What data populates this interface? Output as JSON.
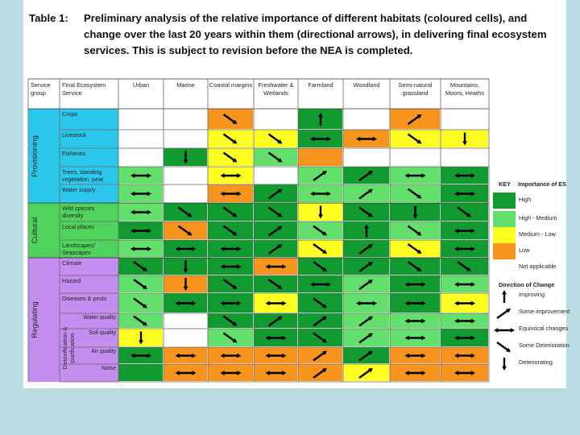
{
  "title": {
    "label": "Table 1:",
    "text": "Preliminary analysis of the relative importance of different habitats (coloured cells), and change over the last 20 years within them (directional arrows), in delivering final ecosystem services.   This is subject to revision before the NEA is completed."
  },
  "header": {
    "group": "Service group",
    "service": "Final Ecosystem Service",
    "habitats": [
      "Urban",
      "Marine",
      "Coastal margins",
      "Freshwater & Wetlands",
      "Farmland",
      "Woodland",
      "Semi-natural grassland",
      "Mountains, Moors, Heaths"
    ]
  },
  "groups": [
    {
      "name": "Provisioning"
    },
    {
      "name": "Cultural"
    },
    {
      "name": "Regulating"
    },
    {
      "name": "Detoxification & purification"
    }
  ],
  "colors": {
    "high": "#119a2f",
    "medium_high": "#63e06c",
    "medium_low": "#ffff22",
    "low": "#f7941e",
    "na": "#ffffff",
    "provisioning": "#2cc8ec",
    "cultural": "#4fd35c",
    "regulating": "#c48ef0"
  },
  "rows": [
    {
      "service": "Crops",
      "cells": [
        {
          "c": "na",
          "a": ""
        },
        {
          "c": "na",
          "a": ""
        },
        {
          "c": "low",
          "a": "down-right"
        },
        {
          "c": "na",
          "a": ""
        },
        {
          "c": "high",
          "a": "up"
        },
        {
          "c": "na",
          "a": ""
        },
        {
          "c": "low",
          "a": "up-right"
        },
        {
          "c": "na",
          "a": ""
        }
      ]
    },
    {
      "service": "Livestock",
      "cells": [
        {
          "c": "na",
          "a": ""
        },
        {
          "c": "na",
          "a": ""
        },
        {
          "c": "medium_low",
          "a": "down-right"
        },
        {
          "c": "medium_low",
          "a": "down-right"
        },
        {
          "c": "high",
          "a": "both"
        },
        {
          "c": "low",
          "a": "both"
        },
        {
          "c": "medium_low",
          "a": "down-right"
        },
        {
          "c": "medium_low",
          "a": "down"
        }
      ]
    },
    {
      "service": "Fisheries",
      "cells": [
        {
          "c": "na",
          "a": ""
        },
        {
          "c": "high",
          "a": "down"
        },
        {
          "c": "medium_low",
          "a": "down-right"
        },
        {
          "c": "medium_high",
          "a": "down-right"
        },
        {
          "c": "low",
          "a": ""
        },
        {
          "c": "na",
          "a": ""
        },
        {
          "c": "na",
          "a": ""
        },
        {
          "c": "na",
          "a": ""
        }
      ]
    },
    {
      "service": "Trees, standing vegetation, peat",
      "cells": [
        {
          "c": "medium_high",
          "a": "both"
        },
        {
          "c": "na",
          "a": ""
        },
        {
          "c": "medium_low",
          "a": "both"
        },
        {
          "c": "na",
          "a": ""
        },
        {
          "c": "medium_high",
          "a": "up-right"
        },
        {
          "c": "high",
          "a": "up-right"
        },
        {
          "c": "medium_high",
          "a": "both"
        },
        {
          "c": "high",
          "a": "both"
        }
      ]
    },
    {
      "service": "Water supply",
      "cells": [
        {
          "c": "medium_high",
          "a": "both"
        },
        {
          "c": "na",
          "a": ""
        },
        {
          "c": "low",
          "a": "both"
        },
        {
          "c": "high",
          "a": "up-right"
        },
        {
          "c": "medium_high",
          "a": "both"
        },
        {
          "c": "medium_high",
          "a": "up-right"
        },
        {
          "c": "medium_high",
          "a": "down-right"
        },
        {
          "c": "high",
          "a": "both"
        }
      ]
    },
    {
      "service": "Wild species diversity",
      "cells": [
        {
          "c": "medium_high",
          "a": "both"
        },
        {
          "c": "high",
          "a": "down-right"
        },
        {
          "c": "high",
          "a": "down-right"
        },
        {
          "c": "high",
          "a": "down-right"
        },
        {
          "c": "medium_low",
          "a": "down"
        },
        {
          "c": "high",
          "a": "down-right"
        },
        {
          "c": "high",
          "a": "down"
        },
        {
          "c": "high",
          "a": "down-right"
        }
      ]
    },
    {
      "service": "Local places",
      "cells": [
        {
          "c": "high",
          "a": "both"
        },
        {
          "c": "low",
          "a": "down-right"
        },
        {
          "c": "high",
          "a": "down-right"
        },
        {
          "c": "high",
          "a": "up-right"
        },
        {
          "c": "medium_high",
          "a": "down-right"
        },
        {
          "c": "high",
          "a": "up"
        },
        {
          "c": "medium_high",
          "a": "down-right"
        },
        {
          "c": "high",
          "a": "both"
        }
      ]
    },
    {
      "service": "Landscapes/ Seascapes",
      "cells": [
        {
          "c": "medium_high",
          "a": "both"
        },
        {
          "c": "high",
          "a": "both"
        },
        {
          "c": "high",
          "a": "both"
        },
        {
          "c": "high",
          "a": "up-right"
        },
        {
          "c": "medium_low",
          "a": "down-right"
        },
        {
          "c": "high",
          "a": "up-right"
        },
        {
          "c": "medium_low",
          "a": "down-right"
        },
        {
          "c": "high",
          "a": "both"
        }
      ]
    },
    {
      "service": "Climate",
      "cells": [
        {
          "c": "high",
          "a": "down-right"
        },
        {
          "c": "high",
          "a": "down"
        },
        {
          "c": "high",
          "a": "both"
        },
        {
          "c": "low",
          "a": "both"
        },
        {
          "c": "high",
          "a": "down-right"
        },
        {
          "c": "high",
          "a": "up-right"
        },
        {
          "c": "high",
          "a": "down-right"
        },
        {
          "c": "high",
          "a": "down-right"
        }
      ]
    },
    {
      "service": "Hazard",
      "cells": [
        {
          "c": "medium_high",
          "a": "down-right"
        },
        {
          "c": "low",
          "a": "down"
        },
        {
          "c": "high",
          "a": "down-right"
        },
        {
          "c": "high",
          "a": "down-right"
        },
        {
          "c": "high",
          "a": "both"
        },
        {
          "c": "medium_high",
          "a": "up-right"
        },
        {
          "c": "high",
          "a": "both"
        },
        {
          "c": "medium_high",
          "a": "both"
        }
      ]
    },
    {
      "service": "Diseases & pests",
      "cells": [
        {
          "c": "medium_high",
          "a": "down-right"
        },
        {
          "c": "high",
          "a": "both"
        },
        {
          "c": "high",
          "a": "both"
        },
        {
          "c": "medium_low",
          "a": "both"
        },
        {
          "c": "high",
          "a": "down-right"
        },
        {
          "c": "medium_high",
          "a": "both"
        },
        {
          "c": "high",
          "a": "both"
        },
        {
          "c": "medium_low",
          "a": "both"
        }
      ]
    },
    {
      "service": "Water quality",
      "cells": [
        {
          "c": "medium_high",
          "a": "down-right"
        },
        {
          "c": "na",
          "a": ""
        },
        {
          "c": "high",
          "a": "down-right"
        },
        {
          "c": "high",
          "a": "up-right"
        },
        {
          "c": "high",
          "a": "up-right"
        },
        {
          "c": "medium_high",
          "a": "up-right"
        },
        {
          "c": "medium_high",
          "a": "both"
        },
        {
          "c": "medium_high",
          "a": "both"
        }
      ]
    },
    {
      "service": "Soil quality",
      "cells": [
        {
          "c": "medium_low",
          "a": "down"
        },
        {
          "c": "na",
          "a": ""
        },
        {
          "c": "medium_high",
          "a": "down-right"
        },
        {
          "c": "high",
          "a": "both"
        },
        {
          "c": "high",
          "a": "down-right"
        },
        {
          "c": "medium_high",
          "a": "up-right"
        },
        {
          "c": "medium_high",
          "a": "both"
        },
        {
          "c": "high",
          "a": "both"
        }
      ]
    },
    {
      "service": "Air quality",
      "cells": [
        {
          "c": "high",
          "a": "both"
        },
        {
          "c": "low",
          "a": "both"
        },
        {
          "c": "low",
          "a": "both"
        },
        {
          "c": "low",
          "a": "both"
        },
        {
          "c": "low",
          "a": "up-right"
        },
        {
          "c": "high",
          "a": "up-right"
        },
        {
          "c": "low",
          "a": "both"
        },
        {
          "c": "low",
          "a": "both"
        }
      ]
    },
    {
      "service": "Noise",
      "cells": [
        {
          "c": "high",
          "a": ""
        },
        {
          "c": "low",
          "a": "both"
        },
        {
          "c": "low",
          "a": "both"
        },
        {
          "c": "low",
          "a": "both"
        },
        {
          "c": "low",
          "a": "up-right"
        },
        {
          "c": "medium_low",
          "a": "up-right"
        },
        {
          "c": "low",
          "a": "both"
        },
        {
          "c": "low",
          "a": "both"
        }
      ]
    }
  ],
  "key": {
    "title": "KEY",
    "importance_title": "Importance of ES",
    "importance": [
      {
        "label": "High",
        "c": "high"
      },
      {
        "label": "High - Medium",
        "c": "medium_high"
      },
      {
        "label": "Medium - Low",
        "c": "medium_low"
      },
      {
        "label": "Low",
        "c": "low"
      },
      {
        "label": "Not applicable",
        "c": "na"
      }
    ],
    "direction_title": "Direction of Change",
    "directions": [
      {
        "label": "Improving",
        "a": "up"
      },
      {
        "label": "Some improvement",
        "a": "up-right"
      },
      {
        "label": "Equivocal changes",
        "a": "both"
      },
      {
        "label": "Some Deterioration",
        "a": "down-right"
      },
      {
        "label": "Deteriorating",
        "a": "down"
      }
    ]
  }
}
